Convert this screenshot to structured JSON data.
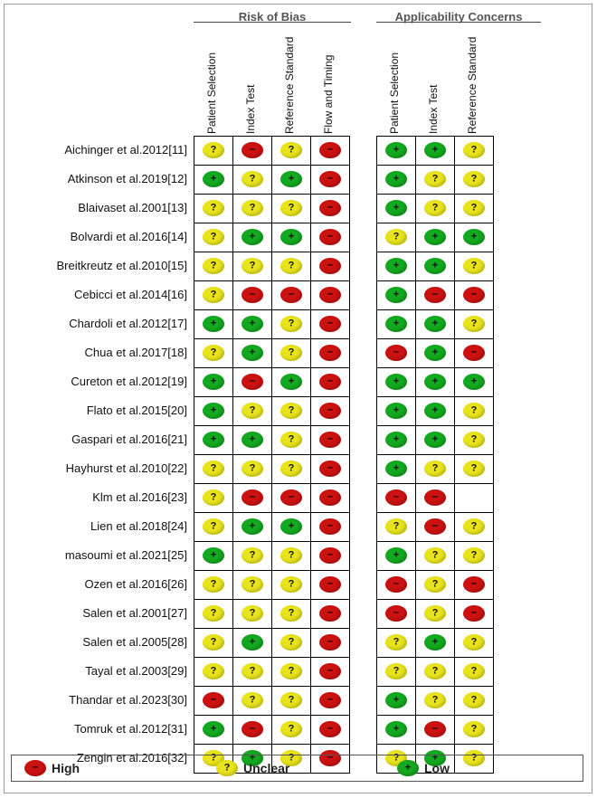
{
  "chart_data": {
    "type": "table",
    "groups": [
      {
        "title": "Risk of Bias",
        "domains": [
          "Patient Selection",
          "Index Test",
          "Reference Standard",
          "Flow and Timing"
        ]
      },
      {
        "title": "Applicability Concerns",
        "domains": [
          "Patient Selection",
          "Index Test",
          "Reference Standard"
        ]
      }
    ],
    "studies": [
      {
        "name": "Aichinger et al.2012[11]",
        "rob": [
          "unclear",
          "high",
          "unclear",
          "high"
        ],
        "app": [
          "low",
          "low",
          "unclear"
        ]
      },
      {
        "name": "Atkinson et al.2019[12]",
        "rob": [
          "low",
          "unclear",
          "low",
          "high"
        ],
        "app": [
          "low",
          "unclear",
          "unclear"
        ]
      },
      {
        "name": "Blaivaset al.2001[13]",
        "rob": [
          "unclear",
          "unclear",
          "unclear",
          "high"
        ],
        "app": [
          "low",
          "unclear",
          "unclear"
        ]
      },
      {
        "name": "Bolvardi et al.2016[14]",
        "rob": [
          "unclear",
          "low",
          "low",
          "high"
        ],
        "app": [
          "unclear",
          "low",
          "low"
        ]
      },
      {
        "name": "Breitkreutz et al.2010[15]",
        "rob": [
          "unclear",
          "unclear",
          "unclear",
          "high"
        ],
        "app": [
          "low",
          "low",
          "unclear"
        ]
      },
      {
        "name": "Cebicci et al.2014[16]",
        "rob": [
          "unclear",
          "high",
          "high",
          "high"
        ],
        "app": [
          "low",
          "high",
          "high"
        ]
      },
      {
        "name": "Chardoli et al.2012[17]",
        "rob": [
          "low",
          "low",
          "unclear",
          "high"
        ],
        "app": [
          "low",
          "low",
          "unclear"
        ]
      },
      {
        "name": "Chua et al.2017[18]",
        "rob": [
          "unclear",
          "low",
          "unclear",
          "high"
        ],
        "app": [
          "high",
          "low",
          "high"
        ]
      },
      {
        "name": "Cureton et al.2012[19]",
        "rob": [
          "low",
          "high",
          "low",
          "high"
        ],
        "app": [
          "low",
          "low",
          "low"
        ]
      },
      {
        "name": "Flato et al.2015[20]",
        "rob": [
          "low",
          "unclear",
          "unclear",
          "high"
        ],
        "app": [
          "low",
          "low",
          "unclear"
        ]
      },
      {
        "name": "Gaspari et al.2016[21]",
        "rob": [
          "low",
          "low",
          "unclear",
          "high"
        ],
        "app": [
          "low",
          "low",
          "unclear"
        ]
      },
      {
        "name": "Hayhurst et al.2010[22]",
        "rob": [
          "unclear",
          "unclear",
          "unclear",
          "high"
        ],
        "app": [
          "low",
          "unclear",
          "unclear"
        ]
      },
      {
        "name": "Klm et al.2016[23]",
        "rob": [
          "unclear",
          "high",
          "high",
          "high"
        ],
        "app": [
          "high",
          "high",
          ""
        ]
      },
      {
        "name": "Lien et al.2018[24]",
        "rob": [
          "unclear",
          "low",
          "low",
          "high"
        ],
        "app": [
          "unclear",
          "high",
          "unclear"
        ]
      },
      {
        "name": "masoumi et al.2021[25]",
        "rob": [
          "low",
          "unclear",
          "unclear",
          "high"
        ],
        "app": [
          "low",
          "unclear",
          "unclear"
        ]
      },
      {
        "name": "Ozen et al.2016[26]",
        "rob": [
          "unclear",
          "unclear",
          "unclear",
          "high"
        ],
        "app": [
          "high",
          "unclear",
          "high"
        ]
      },
      {
        "name": "Salen et al.2001[27]",
        "rob": [
          "unclear",
          "unclear",
          "unclear",
          "high"
        ],
        "app": [
          "high",
          "unclear",
          "high"
        ]
      },
      {
        "name": "Salen et al.2005[28]",
        "rob": [
          "unclear",
          "low",
          "unclear",
          "high"
        ],
        "app": [
          "unclear",
          "low",
          "unclear"
        ]
      },
      {
        "name": "Tayal et al.2003[29]",
        "rob": [
          "unclear",
          "unclear",
          "unclear",
          "high"
        ],
        "app": [
          "unclear",
          "unclear",
          "unclear"
        ]
      },
      {
        "name": "Thandar et al.2023[30]",
        "rob": [
          "high",
          "unclear",
          "unclear",
          "high"
        ],
        "app": [
          "low",
          "unclear",
          "unclear"
        ]
      },
      {
        "name": "Tomruk et al.2012[31]",
        "rob": [
          "low",
          "high",
          "unclear",
          "high"
        ],
        "app": [
          "low",
          "high",
          "unclear"
        ]
      },
      {
        "name": "Zengin et al.2016[32]",
        "rob": [
          "unclear",
          "low",
          "unclear",
          "high"
        ],
        "app": [
          "unclear",
          "low",
          "unclear"
        ]
      }
    ],
    "legend": [
      {
        "key": "high",
        "label": "High",
        "symbol": "−"
      },
      {
        "key": "unclear",
        "label": "Unclear",
        "symbol": "?"
      },
      {
        "key": "low",
        "label": "Low",
        "symbol": "+"
      }
    ],
    "colors": {
      "high": "#cc1111",
      "unclear": "#e8e31a",
      "low": "#12a81f"
    }
  }
}
